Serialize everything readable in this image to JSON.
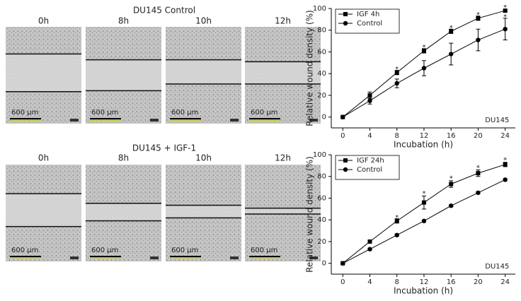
{
  "panels": [
    {
      "title": "DU145 Control",
      "images": [
        {
          "label": "0h",
          "scale": "600 µm"
        },
        {
          "label": "8h",
          "scale": "600 µm"
        },
        {
          "label": "10h",
          "scale": "600 µm"
        },
        {
          "label": "12h",
          "scale": "600 µm"
        }
      ]
    },
    {
      "title": "DU145 + IGF-1",
      "images": [
        {
          "label": "0h",
          "scale": "600 µm"
        },
        {
          "label": "8h",
          "scale": "600 µm"
        },
        {
          "label": "10h",
          "scale": "600 µm"
        },
        {
          "label": "12h",
          "scale": "600 µm"
        }
      ]
    }
  ],
  "chart_data": [
    {
      "type": "line",
      "xlabel": "Incubation (h)",
      "ylabel": "Relative wound density (%)",
      "x": [
        0,
        4,
        8,
        12,
        16,
        20,
        24
      ],
      "xlim": [
        -1.7,
        25.5
      ],
      "xticks": [
        0,
        4,
        8,
        12,
        16,
        20,
        24
      ],
      "ylim": [
        -10,
        100
      ],
      "yticks": [
        0,
        20,
        40,
        60,
        80,
        100
      ],
      "legend": "upper left",
      "series": [
        {
          "name": "IGF 4h",
          "color": "#000000",
          "marker": "square",
          "values": [
            0,
            20,
            41,
            61,
            79,
            91,
            98
          ],
          "errors": [
            0,
            3,
            2,
            2,
            2,
            2,
            1
          ]
        },
        {
          "name": "Control",
          "color": "#000000",
          "marker": "circle",
          "values": [
            0,
            15,
            31,
            45,
            58,
            71,
            81
          ],
          "errors": [
            0,
            3,
            4,
            7,
            10,
            10,
            10
          ]
        }
      ],
      "annotations": [
        {
          "text": "*",
          "x": 8,
          "y": 46
        },
        {
          "text": "*",
          "x": 12,
          "y": 66
        },
        {
          "text": "*",
          "x": 16,
          "y": 84
        },
        {
          "text": "*",
          "x": 20,
          "y": 96
        },
        {
          "text": "*",
          "x": 24,
          "y": 103
        },
        {
          "text": "*",
          "x": 24,
          "y": 94
        },
        {
          "text": "DU145",
          "x": 24.6,
          "y": -3
        }
      ]
    },
    {
      "type": "line",
      "xlabel": "Incubation (h)",
      "ylabel": "Relative wound density (%)",
      "x": [
        0,
        4,
        8,
        12,
        16,
        20,
        24
      ],
      "xlim": [
        -1.7,
        25.5
      ],
      "xticks": [
        0,
        4,
        8,
        12,
        16,
        20,
        24
      ],
      "ylim": [
        -10,
        100
      ],
      "yticks": [
        0,
        20,
        40,
        60,
        80,
        100
      ],
      "legend": "upper left",
      "series": [
        {
          "name": "IGF 24h",
          "color": "#000000",
          "marker": "square",
          "values": [
            0,
            20,
            39,
            56,
            73,
            83,
            91
          ],
          "errors": [
            0,
            1,
            2,
            6,
            3,
            3,
            2
          ]
        },
        {
          "name": "Control",
          "color": "#000000",
          "marker": "circle",
          "values": [
            0,
            13,
            26,
            39,
            53,
            65,
            77
          ],
          "errors": [
            0,
            1,
            1,
            1,
            1,
            1,
            1
          ]
        }
      ],
      "annotations": [
        {
          "text": "*",
          "x": 8,
          "y": 44
        },
        {
          "text": "*",
          "x": 12,
          "y": 66
        },
        {
          "text": "*",
          "x": 16,
          "y": 80
        },
        {
          "text": "*",
          "x": 20,
          "y": 90
        },
        {
          "text": "*",
          "x": 24,
          "y": 97
        },
        {
          "text": "DU145",
          "x": 24.6,
          "y": -3
        }
      ]
    }
  ]
}
